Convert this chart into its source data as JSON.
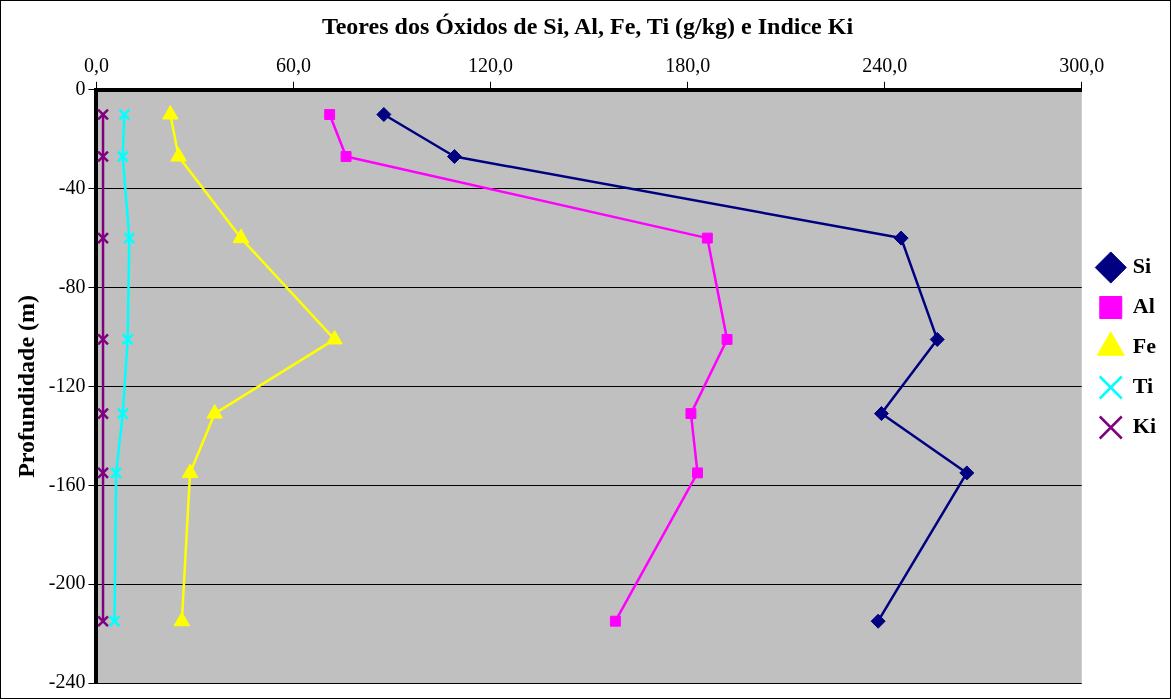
{
  "chart_data": {
    "type": "line",
    "title": "Teores dos Óxidos de Si, Al, Fe, Ti (g/kg) e Indice Ki",
    "ylabel": "Profundidade (m)",
    "xlim": [
      0,
      300
    ],
    "xticks": [
      {
        "value": 0,
        "label": "0,0"
      },
      {
        "value": 60,
        "label": "60,0"
      },
      {
        "value": 120,
        "label": "120,0"
      },
      {
        "value": 180,
        "label": "180,0"
      },
      {
        "value": 240,
        "label": "240,0"
      },
      {
        "value": 300,
        "label": "300,0"
      }
    ],
    "ylim": [
      -240,
      0
    ],
    "yticks": [
      0,
      -40,
      -80,
      -120,
      -160,
      -200,
      -240
    ],
    "grid": "y",
    "legend": "right",
    "series": [
      {
        "name": "Si",
        "color": "#000080",
        "marker": "diamond",
        "x": [
          87.5,
          109,
          245,
          256,
          239,
          265,
          238
        ],
        "values": [
          -10,
          -27,
          -60,
          -101,
          -131,
          -155,
          -215
        ]
      },
      {
        "name": "Al",
        "color": "#ff00ff",
        "marker": "square",
        "x": [
          71,
          76,
          186,
          192,
          181,
          183,
          158
        ],
        "values": [
          -10,
          -27,
          -60,
          -101,
          -131,
          -155,
          -215
        ]
      },
      {
        "name": "Fe",
        "color": "#ffff00",
        "marker": "triangle",
        "x": [
          22.5,
          25,
          44,
          72.5,
          36,
          28.5,
          26
        ],
        "values": [
          -10,
          -27,
          -60,
          -101,
          -131,
          -155,
          -215
        ]
      },
      {
        "name": "Ti",
        "color": "#00ffff",
        "marker": "cross",
        "x": [
          8.5,
          8,
          10,
          9.5,
          8,
          6,
          5.5
        ],
        "values": [
          -10,
          -27,
          -60,
          -101,
          -131,
          -155,
          -215
        ]
      },
      {
        "name": "Ki",
        "color": "#800080",
        "marker": "cross",
        "x": [
          2,
          2,
          2,
          2,
          2,
          2,
          2
        ],
        "values": [
          -10,
          -27,
          -60,
          -101,
          -131,
          -155,
          -215
        ]
      }
    ]
  }
}
